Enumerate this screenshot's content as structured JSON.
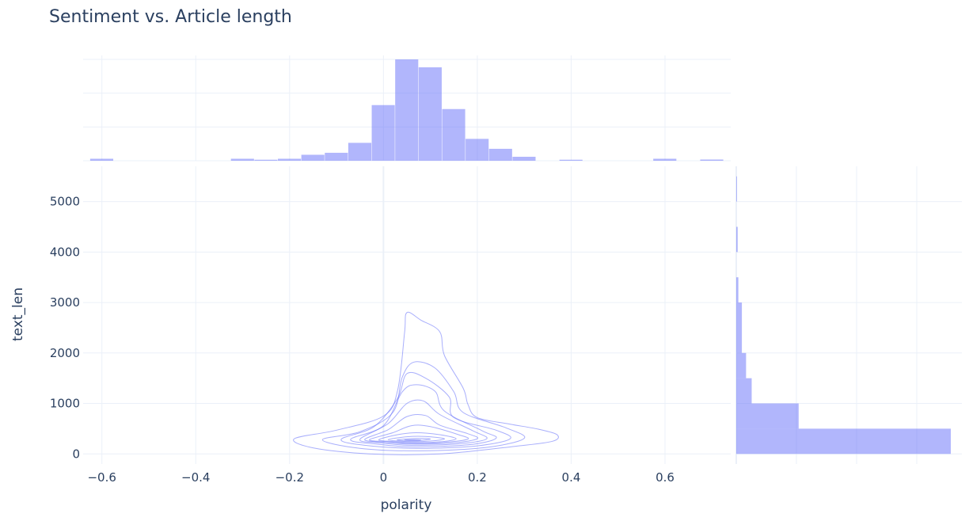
{
  "chart_data": {
    "type": "contour",
    "title": "Sentiment vs. Article length",
    "xlabel": "polarity",
    "ylabel": "text_len",
    "xlim": [
      -0.64,
      0.74
    ],
    "ylim": [
      -200,
      5700
    ],
    "x_ticks": [
      {
        "v": -0.6,
        "label": "−0.6"
      },
      {
        "v": -0.4,
        "label": "−0.4"
      },
      {
        "v": -0.2,
        "label": "−0.2"
      },
      {
        "v": 0,
        "label": "0"
      },
      {
        "v": 0.2,
        "label": "0.2"
      },
      {
        "v": 0.4,
        "label": "0.4"
      },
      {
        "v": 0.6,
        "label": "0.6"
      }
    ],
    "y_ticks": [
      {
        "v": 0,
        "label": "0"
      },
      {
        "v": 1000,
        "label": "1000"
      },
      {
        "v": 2000,
        "label": "2000"
      },
      {
        "v": 3000,
        "label": "3000"
      },
      {
        "v": 4000,
        "label": "4000"
      },
      {
        "v": 5000,
        "label": "5000"
      }
    ],
    "marginal_x_histogram": {
      "bin_width": 0.05,
      "bins": [
        {
          "x0": -0.625,
          "count": 1
        },
        {
          "x0": -0.325,
          "count": 1
        },
        {
          "x0": -0.275,
          "count": 0.5
        },
        {
          "x0": -0.225,
          "count": 1
        },
        {
          "x0": -0.175,
          "count": 3
        },
        {
          "x0": -0.125,
          "count": 4
        },
        {
          "x0": -0.075,
          "count": 9
        },
        {
          "x0": -0.025,
          "count": 28
        },
        {
          "x0": 0.025,
          "count": 51
        },
        {
          "x0": 0.075,
          "count": 47
        },
        {
          "x0": 0.125,
          "count": 26
        },
        {
          "x0": 0.175,
          "count": 11
        },
        {
          "x0": 0.225,
          "count": 6
        },
        {
          "x0": 0.275,
          "count": 2
        },
        {
          "x0": 0.375,
          "count": 0.5
        },
        {
          "x0": 0.575,
          "count": 1
        },
        {
          "x0": 0.675,
          "count": 0.6
        }
      ]
    },
    "marginal_y_histogram": {
      "bins": [
        {
          "y0": 5000,
          "y1": 5500,
          "count": 1
        },
        {
          "y0": 4000,
          "y1": 4500,
          "count": 2
        },
        {
          "y0": 3000,
          "y1": 3500,
          "count": 3
        },
        {
          "y0": 2000,
          "y1": 3000,
          "count": 8
        },
        {
          "y0": 1500,
          "y1": 2000,
          "count": 14
        },
        {
          "y0": 1000,
          "y1": 1500,
          "count": 22
        },
        {
          "y0": 500,
          "y1": 1000,
          "count": 89
        },
        {
          "y0": 0,
          "y1": 500,
          "count": 306
        }
      ]
    },
    "density_contours": [
      {
        "level": 1,
        "points": [
          [
            -0.19,
            300
          ],
          [
            -0.1,
            470
          ],
          [
            0,
            750
          ],
          [
            0.03,
            1250
          ],
          [
            0.045,
            2400
          ],
          [
            0.05,
            2800
          ],
          [
            0.08,
            2650
          ],
          [
            0.12,
            2420
          ],
          [
            0.13,
            1950
          ],
          [
            0.17,
            1300
          ],
          [
            0.18,
            980
          ],
          [
            0.2,
            720
          ],
          [
            0.27,
            590
          ],
          [
            0.33,
            490
          ],
          [
            0.37,
            380
          ],
          [
            0.36,
            250
          ],
          [
            0.28,
            150
          ],
          [
            0.12,
            0
          ],
          [
            -0.03,
            0
          ],
          [
            -0.15,
            120
          ]
        ]
      },
      {
        "level": 2,
        "points": [
          [
            -0.13,
            280
          ],
          [
            -0.05,
            440
          ],
          [
            0.02,
            820
          ],
          [
            0.04,
            1520
          ],
          [
            0.065,
            1820
          ],
          [
            0.11,
            1700
          ],
          [
            0.15,
            1230
          ],
          [
            0.17,
            820
          ],
          [
            0.26,
            520
          ],
          [
            0.3,
            310
          ],
          [
            0.22,
            130
          ],
          [
            0.08,
            60
          ],
          [
            -0.05,
            110
          ]
        ]
      },
      {
        "level": 3,
        "points": [
          [
            -0.09,
            290
          ],
          [
            -0.02,
            540
          ],
          [
            0.03,
            1100
          ],
          [
            0.05,
            1590
          ],
          [
            0.09,
            1500
          ],
          [
            0.14,
            1130
          ],
          [
            0.15,
            720
          ],
          [
            0.24,
            470
          ],
          [
            0.27,
            300
          ],
          [
            0.2,
            160
          ],
          [
            0.07,
            110
          ],
          [
            -0.04,
            170
          ]
        ]
      },
      {
        "level": 4,
        "points": [
          [
            -0.07,
            290
          ],
          [
            0,
            560
          ],
          [
            0.04,
            1230
          ],
          [
            0.07,
            1370
          ],
          [
            0.11,
            1240
          ],
          [
            0.13,
            850
          ],
          [
            0.21,
            460
          ],
          [
            0.24,
            310
          ],
          [
            0.18,
            180
          ],
          [
            0.06,
            140
          ],
          [
            -0.02,
            200
          ]
        ]
      },
      {
        "level": 5,
        "points": [
          [
            -0.05,
            290
          ],
          [
            0.01,
            600
          ],
          [
            0.05,
            1000
          ],
          [
            0.085,
            1050
          ],
          [
            0.12,
            780
          ],
          [
            0.19,
            460
          ],
          [
            0.22,
            300
          ],
          [
            0.16,
            200
          ],
          [
            0.06,
            170
          ],
          [
            -0.01,
            220
          ]
        ]
      },
      {
        "level": 6,
        "points": [
          [
            -0.04,
            285
          ],
          [
            0.01,
            480
          ],
          [
            0.05,
            740
          ],
          [
            0.09,
            760
          ],
          [
            0.12,
            570
          ],
          [
            0.18,
            400
          ],
          [
            0.2,
            300
          ],
          [
            0.15,
            220
          ],
          [
            0.06,
            195
          ],
          [
            0,
            230
          ]
        ]
      },
      {
        "level": 7,
        "points": [
          [
            -0.03,
            280
          ],
          [
            0.02,
            420
          ],
          [
            0.06,
            560
          ],
          [
            0.1,
            540
          ],
          [
            0.16,
            380
          ],
          [
            0.18,
            295
          ],
          [
            0.13,
            230
          ],
          [
            0.06,
            210
          ],
          [
            0.01,
            240
          ]
        ]
      },
      {
        "level": 8,
        "points": [
          [
            -0.01,
            280
          ],
          [
            0.03,
            380
          ],
          [
            0.07,
            420
          ],
          [
            0.12,
            380
          ],
          [
            0.155,
            300
          ],
          [
            0.12,
            240
          ],
          [
            0.06,
            225
          ],
          [
            0.02,
            245
          ]
        ]
      },
      {
        "level": 9,
        "points": [
          [
            0.01,
            280
          ],
          [
            0.05,
            340
          ],
          [
            0.09,
            345
          ],
          [
            0.13,
            300
          ],
          [
            0.1,
            255
          ],
          [
            0.05,
            245
          ]
        ]
      },
      {
        "level": 10,
        "points": [
          [
            0.03,
            280
          ],
          [
            0.07,
            305
          ],
          [
            0.1,
            295
          ],
          [
            0.075,
            262
          ],
          [
            0.045,
            262
          ]
        ]
      },
      {
        "level": 11,
        "points": [
          [
            0.045,
            278
          ],
          [
            0.065,
            284
          ],
          [
            0.08,
            278
          ],
          [
            0.065,
            270
          ]
        ]
      }
    ]
  }
}
